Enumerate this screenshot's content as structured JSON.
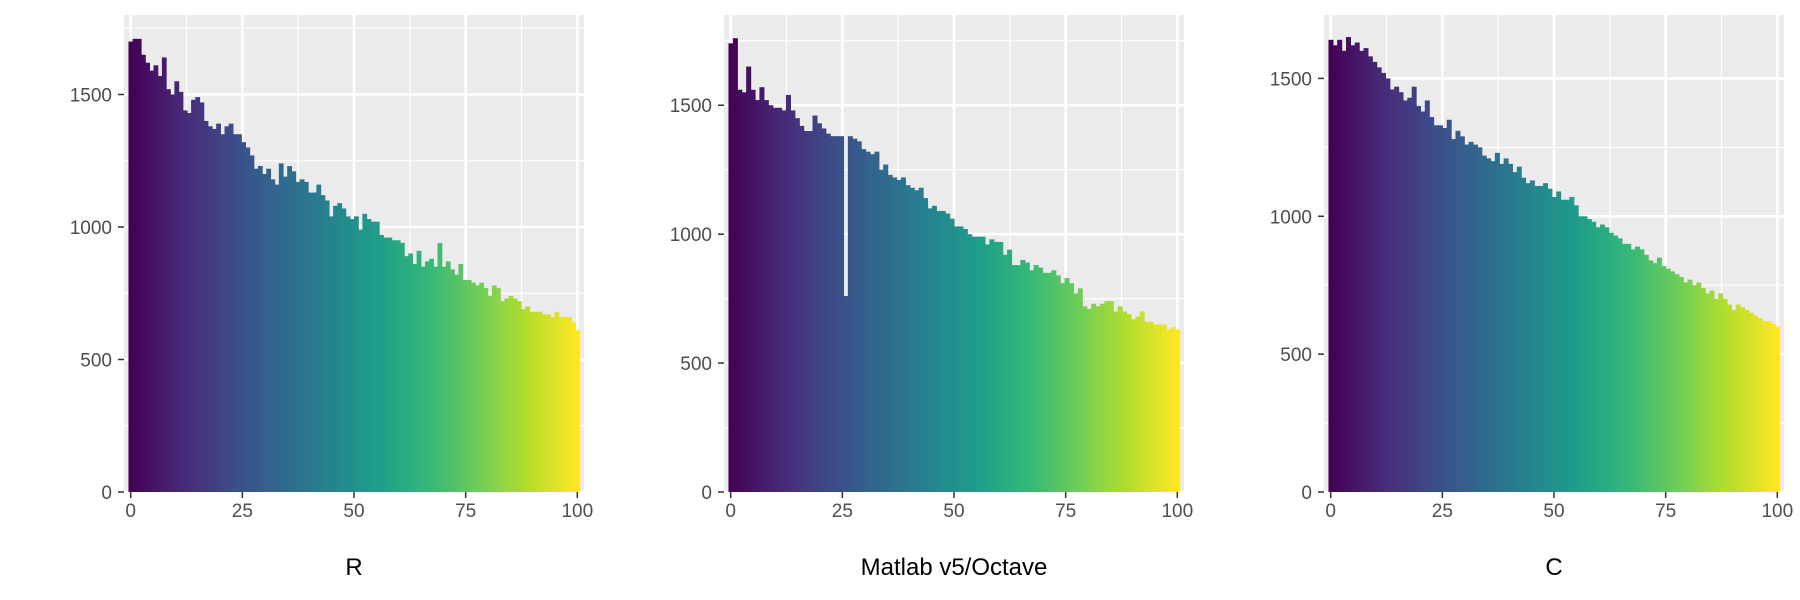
{
  "colors": {
    "panel_background": "#EBEBEB",
    "grid_major": "#FFFFFF",
    "grid_minor": "#F5F5F5",
    "axis_text": "#4D4D4D",
    "axis_title": "#000000",
    "palette": "viridis"
  },
  "chart_data": [
    {
      "type": "bar",
      "xlabel": "R",
      "ylabel": "",
      "xlim": [
        -1.5,
        101.5
      ],
      "ylim": [
        0,
        1800
      ],
      "xticks": [
        0,
        25,
        50,
        75,
        100
      ],
      "yticks": [
        0,
        500,
        1000,
        1500
      ],
      "grid": true,
      "values": [
        1700,
        1710,
        1710,
        1650,
        1620,
        1590,
        1610,
        1570,
        1640,
        1520,
        1500,
        1550,
        1510,
        1440,
        1430,
        1480,
        1490,
        1470,
        1400,
        1380,
        1370,
        1390,
        1350,
        1380,
        1390,
        1350,
        1350,
        1320,
        1300,
        1270,
        1220,
        1230,
        1200,
        1220,
        1180,
        1160,
        1240,
        1190,
        1230,
        1210,
        1170,
        1180,
        1170,
        1130,
        1130,
        1160,
        1120,
        1100,
        1040,
        1080,
        1090,
        1070,
        1040,
        1030,
        1040,
        990,
        1050,
        1030,
        1020,
        1020,
        970,
        960,
        960,
        950,
        950,
        940,
        890,
        900,
        860,
        910,
        850,
        870,
        880,
        850,
        940,
        850,
        870,
        840,
        820,
        860,
        800,
        800,
        790,
        780,
        790,
        770,
        740,
        780,
        770,
        720,
        730,
        740,
        730,
        720,
        690,
        700,
        680,
        680,
        680,
        670,
        670,
        660,
        680,
        660,
        660,
        660,
        640,
        610
      ]
    },
    {
      "type": "bar",
      "xlabel": "Matlab v5/Octave",
      "ylabel": "",
      "xlim": [
        -1.5,
        101.5
      ],
      "ylim": [
        0,
        1850
      ],
      "xticks": [
        0,
        25,
        50,
        75,
        100
      ],
      "yticks": [
        0,
        500,
        1000,
        1500
      ],
      "grid": true,
      "values": [
        1740,
        1760,
        1560,
        1550,
        1650,
        1560,
        1520,
        1570,
        1520,
        1500,
        1490,
        1490,
        1480,
        1540,
        1480,
        1450,
        1420,
        1400,
        1400,
        1460,
        1430,
        1410,
        1390,
        1380,
        1380,
        1380,
        760,
        1380,
        1370,
        1360,
        1330,
        1320,
        1310,
        1320,
        1250,
        1270,
        1230,
        1220,
        1210,
        1220,
        1190,
        1180,
        1170,
        1180,
        1140,
        1100,
        1110,
        1090,
        1090,
        1080,
        1060,
        1030,
        1030,
        1020,
        1000,
        990,
        990,
        990,
        960,
        980,
        970,
        970,
        920,
        940,
        880,
        880,
        900,
        890,
        860,
        880,
        870,
        850,
        850,
        860,
        840,
        810,
        830,
        810,
        770,
        790,
        720,
        710,
        730,
        720,
        730,
        740,
        740,
        700,
        720,
        700,
        690,
        670,
        680,
        700,
        660,
        660,
        650,
        650,
        650,
        630,
        640,
        630
      ]
    },
    {
      "type": "bar",
      "xlabel": "C",
      "ylabel": "",
      "xlim": [
        -1.5,
        101.5
      ],
      "ylim": [
        0,
        1730
      ],
      "xticks": [
        0,
        25,
        50,
        75,
        100
      ],
      "yticks": [
        0,
        500,
        1000,
        1500
      ],
      "grid": true,
      "values": [
        1640,
        1620,
        1640,
        1600,
        1650,
        1620,
        1630,
        1600,
        1610,
        1580,
        1560,
        1540,
        1520,
        1500,
        1460,
        1470,
        1450,
        1420,
        1430,
        1470,
        1400,
        1380,
        1420,
        1360,
        1330,
        1330,
        1320,
        1350,
        1280,
        1310,
        1290,
        1260,
        1270,
        1260,
        1250,
        1220,
        1210,
        1200,
        1230,
        1190,
        1210,
        1190,
        1160,
        1180,
        1140,
        1120,
        1130,
        1110,
        1110,
        1120,
        1100,
        1070,
        1090,
        1060,
        1060,
        1070,
        1040,
        1000,
        1000,
        990,
        980,
        960,
        970,
        960,
        940,
        930,
        920,
        900,
        900,
        880,
        890,
        880,
        860,
        840,
        830,
        850,
        820,
        810,
        800,
        790,
        780,
        760,
        770,
        750,
        760,
        740,
        720,
        730,
        700,
        720,
        700,
        680,
        660,
        680,
        670,
        660,
        650,
        640,
        630,
        620,
        620,
        610,
        600
      ]
    }
  ]
}
